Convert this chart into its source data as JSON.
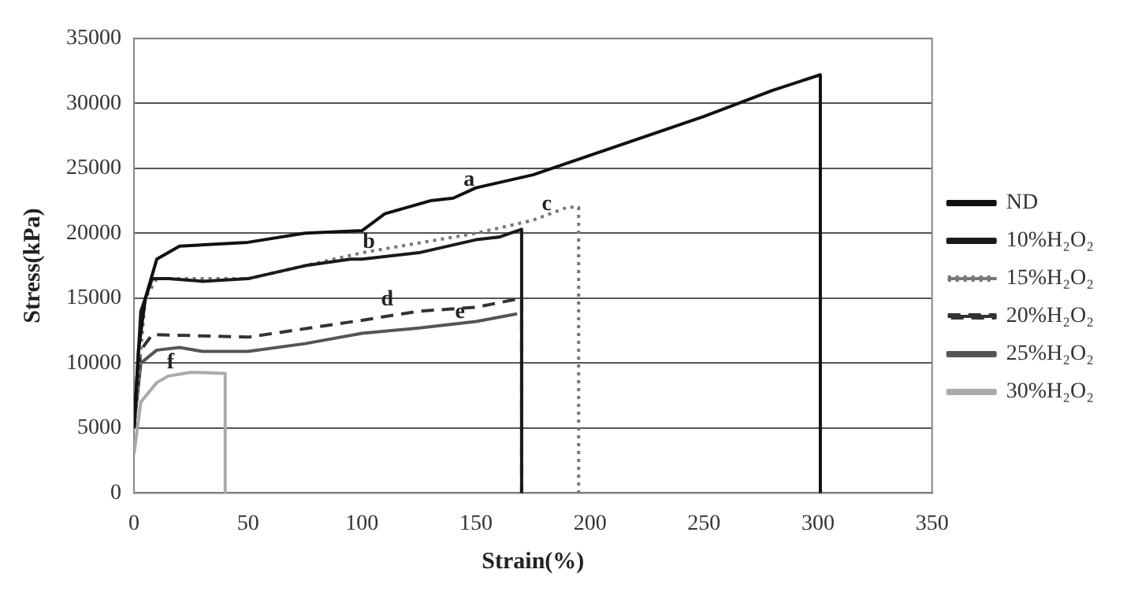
{
  "chart_data": {
    "type": "line",
    "xlabel": "Strain(%)",
    "ylabel": "Stress(kPa)",
    "xlim": [
      0,
      350
    ],
    "xticks": [
      0,
      50,
      100,
      150,
      200,
      250,
      300,
      350
    ],
    "ylim": [
      0,
      35000
    ],
    "yticks": [
      0,
      5000,
      10000,
      15000,
      20000,
      25000,
      30000,
      35000
    ],
    "grid": "y",
    "legend": "right",
    "marker": "none",
    "series": [
      {
        "name": "ND",
        "color": "#111111",
        "line_style": "solid",
        "x": [
          0,
          2,
          5,
          10,
          20,
          50,
          75,
          100,
          110,
          130,
          140,
          150,
          175,
          200,
          250,
          280,
          301,
          301
        ],
        "values": [
          5000,
          11000,
          15000,
          18000,
          19000,
          19300,
          20000,
          20200,
          21500,
          22500,
          22700,
          23500,
          24500,
          26000,
          29000,
          31000,
          32200,
          0
        ]
      },
      {
        "name": "10%H₂O₂",
        "color": "#1a1a1a",
        "line_style": "solid",
        "x": [
          0,
          3,
          8,
          15,
          30,
          50,
          75,
          95,
          100,
          125,
          150,
          160,
          170,
          170
        ],
        "values": [
          5000,
          14000,
          16500,
          16500,
          16300,
          16500,
          17500,
          18000,
          18000,
          18500,
          19500,
          19700,
          20300,
          0
        ]
      },
      {
        "name": "15%H₂O₂",
        "color": "#777777",
        "line_style": "dotted",
        "x": [
          0,
          5,
          10,
          50,
          100,
          150,
          175,
          190,
          195,
          195
        ],
        "values": [
          5000,
          15000,
          16500,
          16500,
          18500,
          20000,
          21000,
          22000,
          22000,
          0
        ]
      },
      {
        "name": "20%H₂O₂",
        "color": "#333333",
        "line_style": "dashed",
        "x": [
          0,
          3,
          8,
          50,
          100,
          125,
          150,
          170,
          170
        ],
        "values": [
          5000,
          11000,
          12200,
          12000,
          13300,
          14000,
          14300,
          15000,
          0
        ]
      },
      {
        "name": "25%H₂O₂",
        "color": "#555555",
        "line_style": "solid",
        "x": [
          0,
          3,
          10,
          20,
          30,
          50,
          75,
          100,
          125,
          150,
          168
        ],
        "values": [
          5000,
          10000,
          11000,
          11200,
          10900,
          10900,
          11500,
          12300,
          12700,
          13200,
          13800
        ]
      },
      {
        "name": "30%H₂O₂",
        "color": "#aaaaaa",
        "line_style": "solid",
        "x": [
          0,
          3,
          10,
          15,
          25,
          40,
          40
        ],
        "values": [
          3000,
          7000,
          8500,
          9000,
          9300,
          9200,
          0
        ]
      }
    ],
    "annotations": [
      {
        "text": "a",
        "x": 147,
        "y": 22900
      },
      {
        "text": "b",
        "x": 103,
        "y": 18100
      },
      {
        "text": "c",
        "x": 181,
        "y": 21000
      },
      {
        "text": "d",
        "x": 111,
        "y": 13700
      },
      {
        "text": "e",
        "x": 143,
        "y": 12700
      },
      {
        "text": "f",
        "x": 16,
        "y": 8800
      }
    ]
  }
}
